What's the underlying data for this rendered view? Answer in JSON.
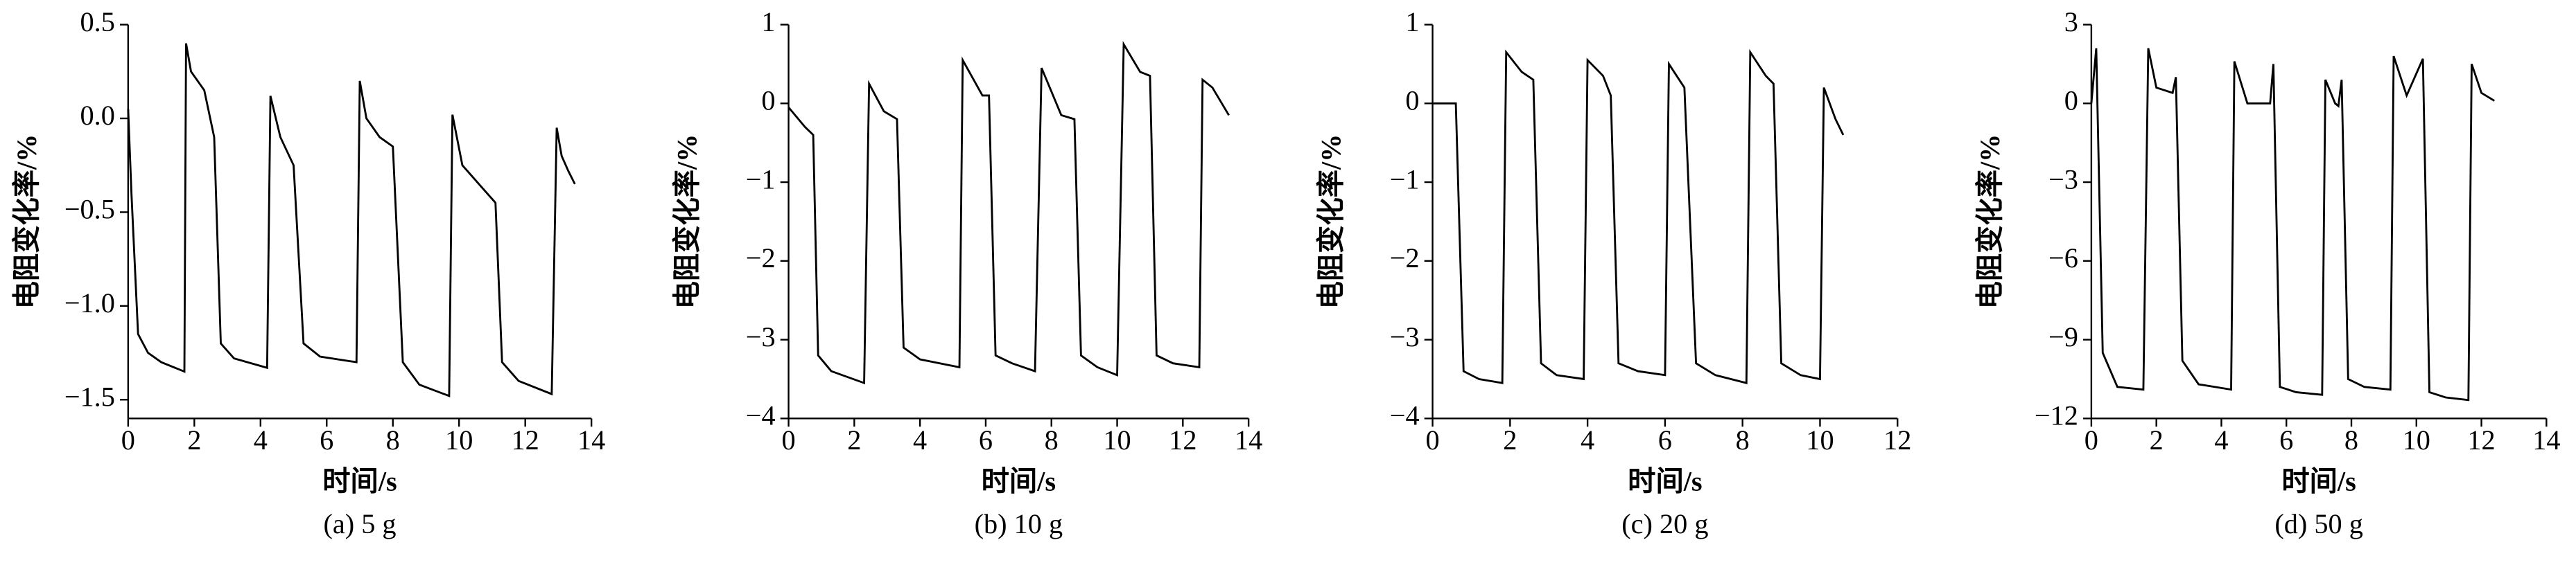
{
  "chart_data": [
    {
      "type": "line",
      "caption": "(a) 5 g",
      "xlabel": "时间/s",
      "ylabel": "电阻变化率/%",
      "color": "#000000",
      "xlim": [
        0,
        14
      ],
      "xticks": [
        0,
        2,
        4,
        6,
        8,
        10,
        12,
        14
      ],
      "ylim": [
        -1.6,
        0.5
      ],
      "yticks": [
        0.5,
        {
          "value": 0,
          "label": "0.0"
        },
        {
          "value": -0.5,
          "label": "−0.5"
        },
        {
          "value": -1,
          "label": "−1.0"
        },
        {
          "value": -1.5,
          "label": "−1.5"
        }
      ],
      "x": [
        0,
        0.1,
        0.3,
        0.6,
        1.0,
        1.7,
        1.75,
        1.9,
        2.3,
        2.6,
        2.8,
        3.2,
        4.2,
        4.3,
        4.6,
        5.0,
        5.3,
        5.8,
        6.9,
        7.0,
        7.2,
        7.6,
        8.0,
        8.3,
        8.8,
        9.7,
        9.8,
        10.1,
        10.6,
        11.1,
        11.3,
        11.8,
        12.8,
        12.95,
        13.1,
        13.3,
        13.5
      ],
      "values": [
        0.05,
        -0.4,
        -1.15,
        -1.25,
        -1.3,
        -1.35,
        0.4,
        0.25,
        0.15,
        -0.1,
        -1.2,
        -1.28,
        -1.33,
        0.12,
        -0.1,
        -0.25,
        -1.2,
        -1.27,
        -1.3,
        0.2,
        0.0,
        -0.1,
        -0.15,
        -1.3,
        -1.42,
        -1.48,
        0.02,
        -0.25,
        -0.35,
        -0.45,
        -1.3,
        -1.4,
        -1.47,
        -0.05,
        -0.2,
        -0.28,
        -0.35
      ]
    },
    {
      "type": "line",
      "caption": "(b) 10 g",
      "xlabel": "时间/s",
      "ylabel": "电阻变化率/%",
      "color": "#000000",
      "xlim": [
        0,
        14
      ],
      "xticks": [
        0,
        2,
        4,
        6,
        8,
        10,
        12,
        14
      ],
      "ylim": [
        -4,
        1
      ],
      "yticks": [
        1,
        0,
        {
          "value": -1,
          "label": "−1"
        },
        {
          "value": -2,
          "label": "−2"
        },
        {
          "value": -3,
          "label": "−3"
        },
        {
          "value": -4,
          "label": "−4"
        }
      ],
      "x": [
        0,
        0.5,
        0.75,
        0.9,
        1.3,
        2.3,
        2.45,
        2.9,
        3.3,
        3.5,
        4.0,
        5.2,
        5.3,
        5.9,
        6.1,
        6.3,
        6.8,
        7.5,
        7.7,
        8.3,
        8.7,
        8.9,
        9.4,
        10.0,
        10.2,
        10.7,
        11.0,
        11.2,
        11.7,
        12.5,
        12.6,
        12.9,
        13.4
      ],
      "values": [
        -0.05,
        -0.3,
        -0.4,
        -3.2,
        -3.4,
        -3.55,
        0.25,
        -0.1,
        -0.2,
        -3.1,
        -3.25,
        -3.35,
        0.55,
        0.1,
        0.1,
        -3.2,
        -3.3,
        -3.4,
        0.45,
        -0.15,
        -0.2,
        -3.2,
        -3.35,
        -3.45,
        0.75,
        0.4,
        0.35,
        -3.2,
        -3.3,
        -3.35,
        0.3,
        0.2,
        -0.15
      ]
    },
    {
      "type": "line",
      "caption": "(c) 20 g",
      "xlabel": "时间/s",
      "ylabel": "电阻变化率/%",
      "color": "#000000",
      "xlim": [
        0,
        12
      ],
      "xticks": [
        0,
        2,
        4,
        6,
        8,
        10,
        12
      ],
      "ylim": [
        -4,
        1
      ],
      "yticks": [
        1,
        0,
        {
          "value": -1,
          "label": "−1"
        },
        {
          "value": -2,
          "label": "−2"
        },
        {
          "value": -3,
          "label": "−3"
        },
        {
          "value": -4,
          "label": "−4"
        }
      ],
      "x": [
        0,
        0.6,
        0.8,
        1.2,
        1.8,
        1.9,
        2.3,
        2.6,
        2.8,
        3.2,
        3.9,
        4.0,
        4.4,
        4.6,
        4.8,
        5.3,
        6.0,
        6.1,
        6.5,
        6.8,
        7.3,
        8.1,
        8.2,
        8.6,
        8.8,
        9.0,
        9.5,
        10.0,
        10.1,
        10.4,
        10.6
      ],
      "values": [
        0,
        0,
        -3.4,
        -3.5,
        -3.55,
        0.65,
        0.4,
        0.3,
        -3.3,
        -3.45,
        -3.5,
        0.55,
        0.35,
        0.1,
        -3.3,
        -3.4,
        -3.45,
        0.5,
        0.2,
        -3.3,
        -3.45,
        -3.55,
        0.65,
        0.35,
        0.25,
        -3.3,
        -3.45,
        -3.5,
        0.2,
        -0.2,
        -0.4
      ]
    },
    {
      "type": "line",
      "caption": "(d) 50 g",
      "xlabel": "时间/s",
      "ylabel": "电阻变化率/%",
      "color": "#000000",
      "xlim": [
        0,
        14
      ],
      "xticks": [
        0,
        2,
        4,
        6,
        8,
        10,
        12,
        14
      ],
      "ylim": [
        -12,
        3
      ],
      "yticks": [
        3,
        0,
        {
          "value": -3,
          "label": "−3"
        },
        {
          "value": -6,
          "label": "−6"
        },
        {
          "value": -9,
          "label": "−9"
        },
        {
          "value": -12,
          "label": "−12"
        }
      ],
      "x": [
        0,
        0.15,
        0.35,
        0.8,
        1.6,
        1.75,
        2.0,
        2.5,
        2.6,
        2.8,
        3.3,
        4.3,
        4.4,
        4.8,
        5.5,
        5.6,
        5.8,
        6.3,
        7.1,
        7.2,
        7.5,
        7.6,
        7.7,
        7.9,
        8.4,
        9.2,
        9.3,
        9.7,
        10.2,
        10.4,
        10.9,
        11.6,
        11.7,
        12.0,
        12.4
      ],
      "values": [
        0,
        2.1,
        -9.5,
        -10.8,
        -10.9,
        2.1,
        0.6,
        0.4,
        1.0,
        -9.8,
        -10.7,
        -10.9,
        1.6,
        0,
        0,
        1.5,
        -10.8,
        -11,
        -11.1,
        0.9,
        0,
        -0.1,
        0.9,
        -10.5,
        -10.8,
        -10.9,
        1.8,
        0.3,
        1.7,
        -11,
        -11.2,
        -11.3,
        1.5,
        0.4,
        0.1
      ]
    }
  ]
}
